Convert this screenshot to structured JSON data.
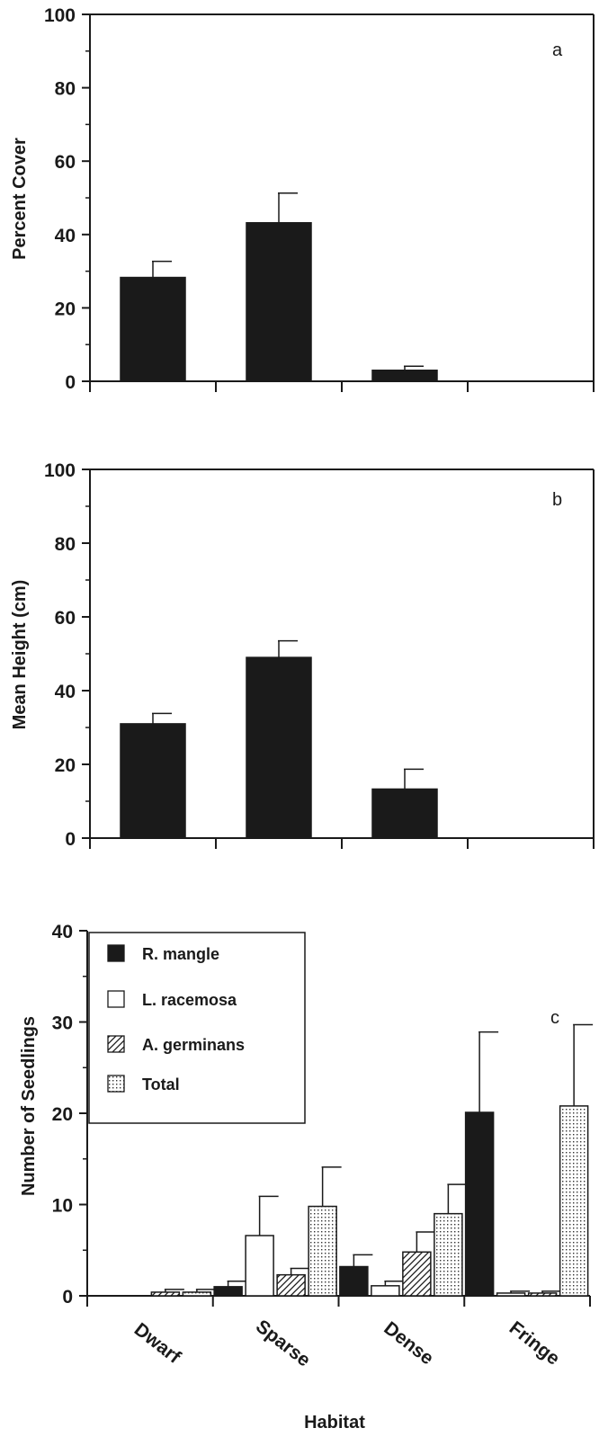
{
  "chart_data": [
    {
      "type": "bar",
      "panel_letter": "a",
      "categories": [
        "Dwarf",
        "Sparse",
        "Dense",
        "Fringe"
      ],
      "ylabel": "Percent Cover",
      "ylim": [
        0,
        100
      ],
      "yticks": [
        "0",
        "20",
        "40",
        "60",
        "80",
        "100"
      ],
      "show_category_labels": false,
      "series": [
        {
          "values": [
            28.3,
            43.2,
            3.0,
            0
          ],
          "errors": [
            4.4,
            8.1,
            1.1,
            0
          ],
          "fill": "solid"
        }
      ]
    },
    {
      "type": "bar",
      "panel_letter": "b",
      "categories": [
        "Dwarf",
        "Sparse",
        "Dense",
        "Fringe"
      ],
      "ylabel": "Mean Height (cm)",
      "ylim": [
        0,
        100
      ],
      "yticks": [
        "0",
        "20",
        "40",
        "60",
        "80",
        "100"
      ],
      "show_category_labels": false,
      "series": [
        {
          "values": [
            31.0,
            49.0,
            13.3,
            0
          ],
          "errors": [
            2.8,
            4.5,
            5.4,
            0
          ],
          "fill": "solid"
        }
      ]
    },
    {
      "type": "bar",
      "panel_letter": "c",
      "categories": [
        "Dwarf",
        "Sparse",
        "Dense",
        "Fringe"
      ],
      "xlabel": "Habitat",
      "ylabel": "Number of Seedlings",
      "ylim": [
        0,
        40
      ],
      "yticks": [
        "0",
        "10",
        "20",
        "30",
        "40"
      ],
      "show_category_labels": true,
      "legend": {
        "position": "top-left"
      },
      "series": [
        {
          "name": "R. mangle",
          "values": [
            0,
            1.0,
            3.2,
            20.1
          ],
          "errors": [
            0,
            0.6,
            1.3,
            8.8
          ],
          "fill": "solid"
        },
        {
          "name": "L. racemosa",
          "values": [
            0,
            6.6,
            1.1,
            0.3
          ],
          "errors": [
            0,
            4.3,
            0.5,
            0.2
          ],
          "fill": "white"
        },
        {
          "name": "A. germinans",
          "values": [
            0.4,
            2.3,
            4.8,
            0.3
          ],
          "errors": [
            0.3,
            0.7,
            2.2,
            0.2
          ],
          "fill": "hatch"
        },
        {
          "name": "Total",
          "values": [
            0.4,
            9.8,
            9.0,
            20.8
          ],
          "errors": [
            0.3,
            4.3,
            3.2,
            8.9
          ],
          "fill": "dots"
        }
      ]
    }
  ]
}
